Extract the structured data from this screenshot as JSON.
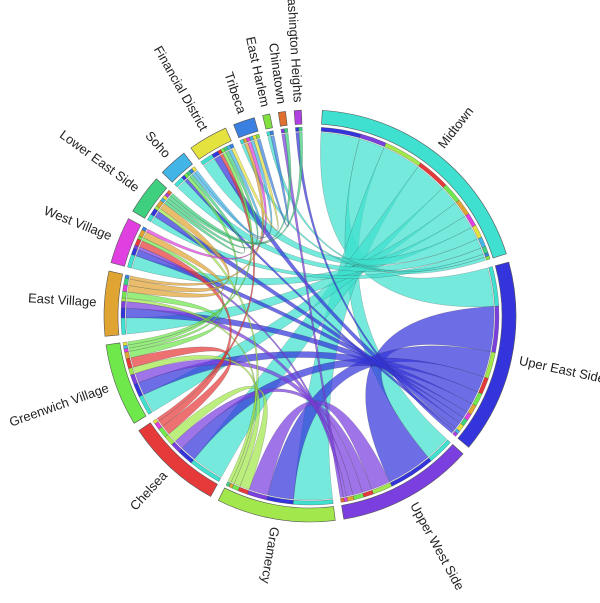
{
  "chart_data": {
    "type": "chord",
    "categories": [
      "Midtown",
      "Uper East Side",
      "Upper West Side",
      "Gramercy",
      "Chelsea",
      "Greenwich Village",
      "East Village",
      "West Village",
      "Lower East Side",
      "Soho",
      "Financial District",
      "Tribeca",
      "East Harlem",
      "Chinatown",
      "Washington Heights"
    ],
    "values": [
      68,
      54,
      38,
      33,
      27,
      23,
      18,
      13,
      11,
      8,
      11,
      6,
      2,
      2,
      2
    ],
    "colors": [
      "#3fe0cf",
      "#3434dc",
      "#7b3fe0",
      "#a2e84c",
      "#e63a3a",
      "#6fe84c",
      "#e0a432",
      "#e040e0",
      "#3ed07e",
      "#42b4e6",
      "#e4e23e",
      "#3a80e0",
      "#7fe040",
      "#e07030",
      "#b040e0"
    ],
    "flows": [
      {
        "source": "Midtown",
        "target": "Uper East Side",
        "value": 12
      },
      {
        "source": "Midtown",
        "target": "Upper West Side",
        "value": 8
      },
      {
        "source": "Midtown",
        "target": "Gramercy",
        "value": 12
      },
      {
        "source": "Midtown",
        "target": "Chelsea",
        "value": 10
      },
      {
        "source": "Midtown",
        "target": "Greenwich Village",
        "value": 6
      },
      {
        "source": "Midtown",
        "target": "East Village",
        "value": 5
      },
      {
        "source": "Midtown",
        "target": "West Village",
        "value": 4
      },
      {
        "source": "Midtown",
        "target": "Financial District",
        "value": 4
      },
      {
        "source": "Midtown",
        "target": "Soho",
        "value": 3
      },
      {
        "source": "Midtown",
        "target": "Lower East Side",
        "value": 2
      },
      {
        "source": "Midtown",
        "target": "Tribeca",
        "value": 1
      },
      {
        "source": "Midtown",
        "target": "East Harlem",
        "value": 1
      },
      {
        "source": "Uper East Side",
        "target": "Upper West Side",
        "value": 14
      },
      {
        "source": "Uper East Side",
        "target": "Gramercy",
        "value": 8
      },
      {
        "source": "Uper East Side",
        "target": "Chelsea",
        "value": 5
      },
      {
        "source": "Uper East Side",
        "target": "Greenwich Village",
        "value": 4
      },
      {
        "source": "Uper East Side",
        "target": "East Village",
        "value": 3
      },
      {
        "source": "Uper East Side",
        "target": "West Village",
        "value": 2
      },
      {
        "source": "Uper East Side",
        "target": "Lower East Side",
        "value": 2
      },
      {
        "source": "Uper East Side",
        "target": "Financial District",
        "value": 2
      },
      {
        "source": "Uper East Side",
        "target": "Soho",
        "value": 1
      },
      {
        "source": "Uper East Side",
        "target": "Washington Heights",
        "value": 1
      },
      {
        "source": "Upper West Side",
        "target": "Gramercy",
        "value": 6
      },
      {
        "source": "Upper West Side",
        "target": "Chelsea",
        "value": 3
      },
      {
        "source": "Upper West Side",
        "target": "Greenwich Village",
        "value": 3
      },
      {
        "source": "Upper West Side",
        "target": "East Village",
        "value": 2
      },
      {
        "source": "Upper West Side",
        "target": "West Village",
        "value": 1
      },
      {
        "source": "Upper West Side",
        "target": "Chinatown",
        "value": 1
      },
      {
        "source": "Gramercy",
        "target": "Chelsea",
        "value": 3
      },
      {
        "source": "Gramercy",
        "target": "Greenwich Village",
        "value": 2
      },
      {
        "source": "Gramercy",
        "target": "East Village",
        "value": 1
      },
      {
        "source": "Gramercy",
        "target": "Lower East Side",
        "value": 1
      },
      {
        "source": "Chelsea",
        "target": "Greenwich Village",
        "value": 3
      },
      {
        "source": "Chelsea",
        "target": "West Village",
        "value": 2
      },
      {
        "source": "Chelsea",
        "target": "Financial District",
        "value": 1
      },
      {
        "source": "Greenwich Village",
        "target": "East Village",
        "value": 2
      },
      {
        "source": "Greenwich Village",
        "target": "West Village",
        "value": 1
      },
      {
        "source": "Greenwich Village",
        "target": "Soho",
        "value": 1
      },
      {
        "source": "Greenwich Village",
        "target": "Financial District",
        "value": 1
      },
      {
        "source": "East Village",
        "target": "West Village",
        "value": 2
      },
      {
        "source": "East Village",
        "target": "Lower East Side",
        "value": 2
      },
      {
        "source": "East Village",
        "target": "Tribeca",
        "value": 1
      },
      {
        "source": "West Village",
        "target": "Tribeca",
        "value": 1
      },
      {
        "source": "Lower East Side",
        "target": "Soho",
        "value": 1
      },
      {
        "source": "Lower East Side",
        "target": "Financial District",
        "value": 1
      },
      {
        "source": "Lower East Side",
        "target": "Washington Heights",
        "value": 1
      },
      {
        "source": "Lower East Side",
        "target": "Chinatown",
        "value": 1
      },
      {
        "source": "Soho",
        "target": "Tribeca",
        "value": 1
      },
      {
        "source": "Soho",
        "target": "Financial District",
        "value": 1
      },
      {
        "source": "Financial District",
        "target": "Tribeca",
        "value": 1
      },
      {
        "source": "Tribeca",
        "target": "East Harlem",
        "value": 1
      }
    ]
  }
}
